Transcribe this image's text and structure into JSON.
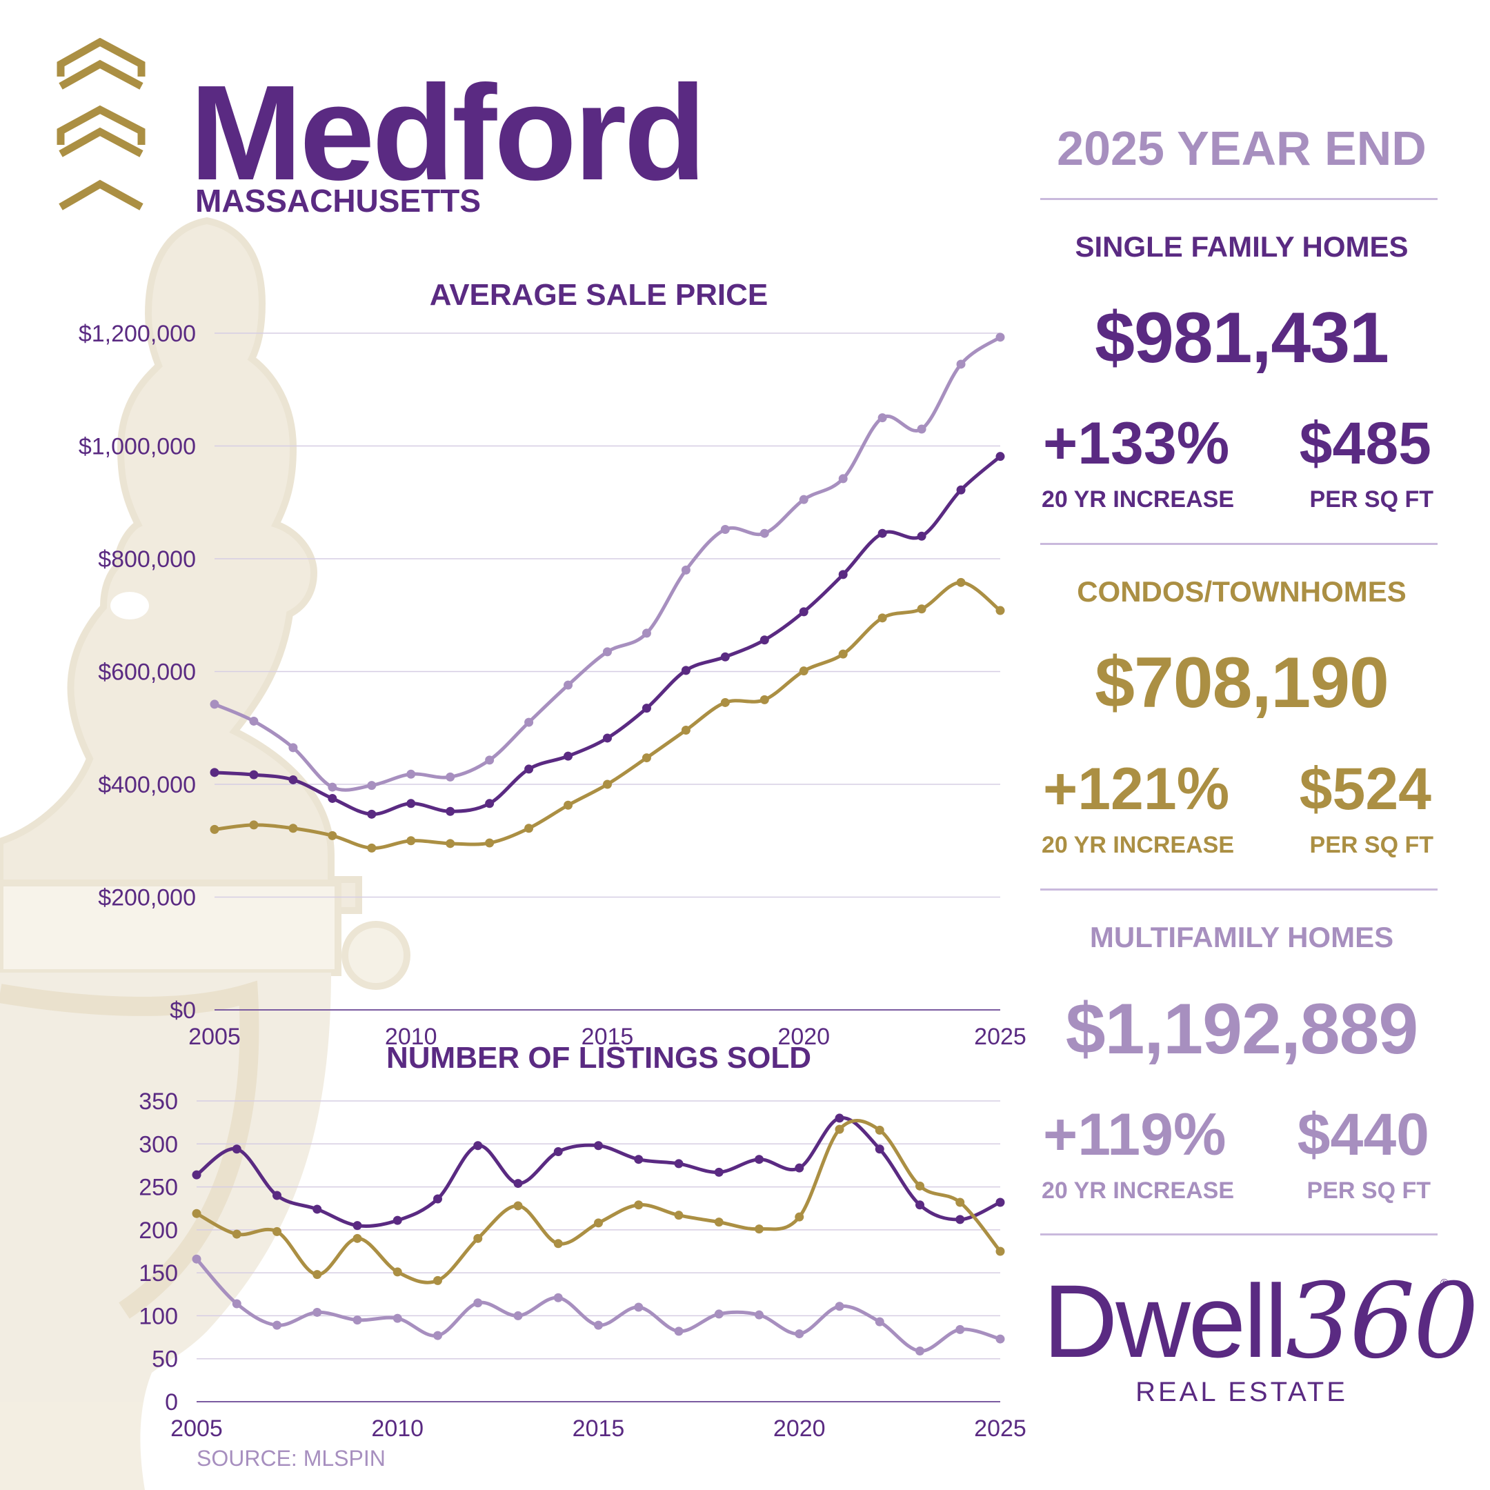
{
  "header": {
    "city": "Medford",
    "state": "MASSACHUSETTS",
    "period": "2025 YEAR END"
  },
  "colors": {
    "purple": "#5a2a82",
    "gold": "#ab8f43",
    "lavender": "#a78fbf"
  },
  "sections": [
    {
      "label": "SINGLE FAMILY HOMES",
      "price": "$981,431",
      "increase": "+133%",
      "increase_caption": "20 YR INCREASE",
      "ppsf": "$485",
      "ppsf_caption": "PER SQ FT",
      "color": "#5a2a82"
    },
    {
      "label": "CONDOS/TOWNHOMES",
      "price": "$708,190",
      "increase": "+121%",
      "increase_caption": "20 YR INCREASE",
      "ppsf": "$524",
      "ppsf_caption": "PER SQ FT",
      "color": "#ab8f43"
    },
    {
      "label": "MULTIFAMILY HOMES",
      "price": "$1,192,889",
      "increase": "+119%",
      "increase_caption": "20 YR INCREASE",
      "ppsf": "$440",
      "ppsf_caption": "PER SQ FT",
      "color": "#a78fbf"
    }
  ],
  "brand": {
    "name_a": "Dwell",
    "name_b": "360",
    "registered": "®",
    "sub": "REAL ESTATE"
  },
  "footer": {
    "source": "SOURCE: MLSPIN"
  },
  "chart_data": [
    {
      "type": "line",
      "title": "AVERAGE SALE PRICE",
      "x": [
        2005,
        2006,
        2007,
        2008,
        2009,
        2010,
        2011,
        2012,
        2013,
        2014,
        2015,
        2016,
        2017,
        2018,
        2019,
        2020,
        2021,
        2022,
        2023,
        2024,
        2025
      ],
      "x_ticks": [
        "2005",
        "2010",
        "2015",
        "2020",
        "2025"
      ],
      "y_ticks": [
        "$0",
        "$200,000",
        "$400,000",
        "$600,000",
        "$800,000",
        "$1,000,000",
        "$1,200,000"
      ],
      "ylim": [
        0,
        1200000
      ],
      "grid": true,
      "series": [
        {
          "key": "multifamily",
          "color": "#a78fbf",
          "values": [
            542000,
            512000,
            465000,
            395000,
            398000,
            418000,
            413000,
            443000,
            510000,
            576000,
            635000,
            668000,
            780000,
            852000,
            845000,
            905000,
            942000,
            1050000,
            1030000,
            1145000,
            1192889
          ]
        },
        {
          "key": "single_family",
          "color": "#5a2a82",
          "values": [
            421000,
            417000,
            408000,
            375000,
            347000,
            366000,
            352000,
            366000,
            427000,
            450000,
            482000,
            535000,
            602000,
            626000,
            656000,
            706000,
            772000,
            845000,
            840000,
            922000,
            981431
          ]
        },
        {
          "key": "condo",
          "color": "#ab8f43",
          "values": [
            320000,
            328000,
            322000,
            309000,
            287000,
            300000,
            295000,
            296000,
            322000,
            363000,
            400000,
            447000,
            496000,
            545000,
            550000,
            601000,
            631000,
            695000,
            711000,
            758000,
            708190
          ]
        }
      ]
    },
    {
      "type": "line",
      "title": "NUMBER OF LISTINGS SOLD",
      "x": [
        2005,
        2006,
        2007,
        2008,
        2009,
        2010,
        2011,
        2012,
        2013,
        2014,
        2015,
        2016,
        2017,
        2018,
        2019,
        2020,
        2021,
        2022,
        2023,
        2024,
        2025
      ],
      "x_ticks": [
        "2005",
        "2010",
        "2015",
        "2020",
        "2025"
      ],
      "y_ticks": [
        "0",
        "50",
        "100",
        "150",
        "200",
        "250",
        "300",
        "350"
      ],
      "ylim": [
        0,
        350
      ],
      "grid": true,
      "series": [
        {
          "key": "single_family",
          "color": "#5a2a82",
          "values": [
            264,
            294,
            240,
            224,
            205,
            211,
            236,
            298,
            254,
            291,
            298,
            282,
            277,
            267,
            282,
            272,
            330,
            294,
            229,
            212,
            232
          ]
        },
        {
          "key": "condo",
          "color": "#ab8f43",
          "values": [
            219,
            195,
            198,
            148,
            190,
            151,
            141,
            190,
            228,
            184,
            208,
            229,
            217,
            209,
            201,
            215,
            317,
            316,
            251,
            232,
            175
          ]
        },
        {
          "key": "multifamily",
          "color": "#a78fbf",
          "values": [
            166,
            114,
            89,
            104,
            95,
            97,
            77,
            115,
            100,
            121,
            89,
            110,
            82,
            102,
            101,
            79,
            111,
            93,
            59,
            84,
            73
          ]
        }
      ]
    }
  ]
}
